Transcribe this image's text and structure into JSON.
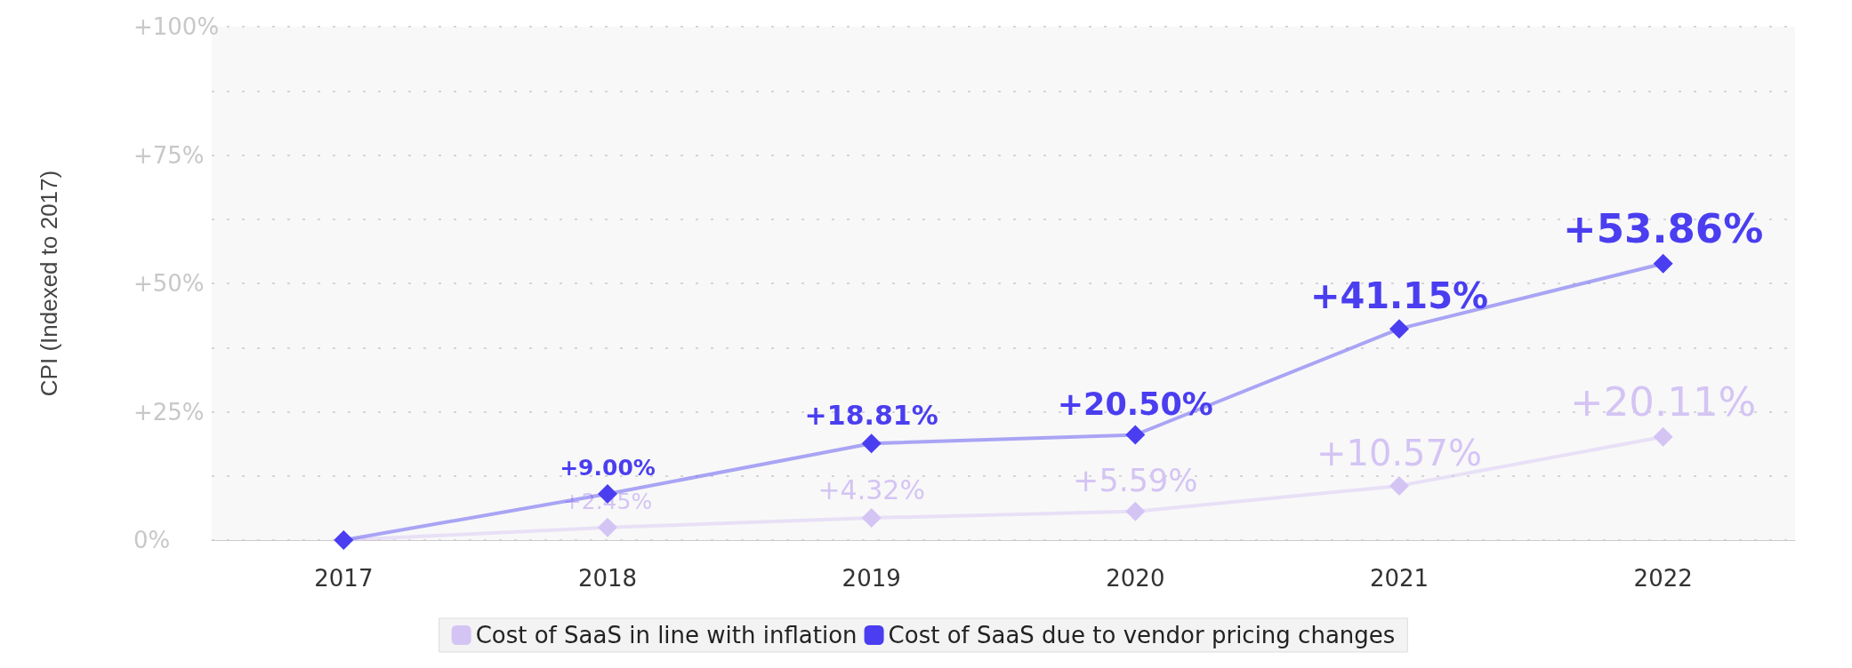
{
  "chart_data": {
    "type": "line",
    "ylabel": "CPI (Indexed to 2017)",
    "categories": [
      "2017",
      "2018",
      "2019",
      "2020",
      "2021",
      "2022"
    ],
    "series": [
      {
        "name": "Cost of SaaS in line with inflation",
        "color": "#d4c4f4",
        "values": [
          0,
          2.45,
          4.32,
          5.59,
          10.57,
          20.11
        ],
        "value_labels": [
          null,
          "+2.45%",
          "+4.32%",
          "+5.59%",
          "+10.57%",
          "+20.11%"
        ]
      },
      {
        "name": "Cost of SaaS due to vendor pricing changes",
        "color": "#4a3ef0",
        "values": [
          0,
          9.0,
          18.81,
          20.5,
          41.15,
          53.86
        ],
        "value_labels": [
          null,
          "+9.00%",
          "+18.81%",
          "+20.50%",
          "+41.15%",
          "+53.86%"
        ]
      }
    ],
    "ylim": [
      0,
      100
    ],
    "yticks": [
      {
        "value": 0,
        "label": "0%"
      },
      {
        "value": 12.5,
        "label": null
      },
      {
        "value": 25,
        "label": "+25%"
      },
      {
        "value": 37.5,
        "label": null
      },
      {
        "value": 50,
        "label": "+50%"
      },
      {
        "value": 62.5,
        "label": null
      },
      {
        "value": 75,
        "label": "+75%"
      },
      {
        "value": 87.5,
        "label": null
      },
      {
        "value": 100,
        "label": "+100%"
      }
    ],
    "grid": "y",
    "legend": "bottom",
    "marker": "diamond",
    "line_style": "solid"
  }
}
